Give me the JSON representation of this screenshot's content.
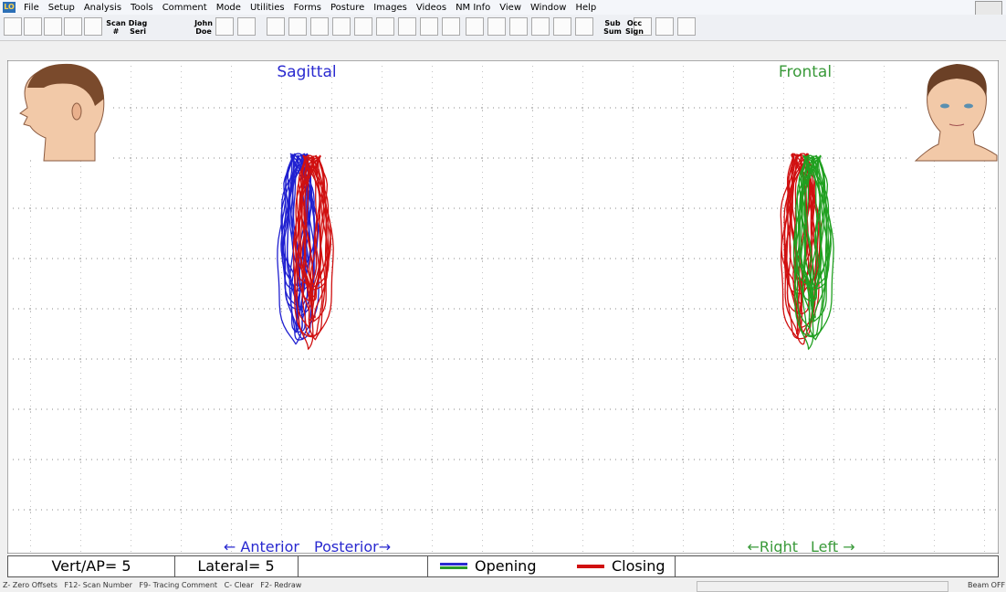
{
  "app_icon": "LO",
  "menu": [
    "File",
    "Setup",
    "Analysis",
    "Tools",
    "Comment",
    "Mode",
    "Utilities",
    "Forms",
    "Posture",
    "Images",
    "Videos",
    "NM Info",
    "View",
    "Window",
    "Help"
  ],
  "toolbar": {
    "text_buttons": [
      [
        "Scan",
        "#"
      ],
      [
        "Diag",
        "Seri"
      ],
      [
        "John",
        "Doe"
      ],
      [
        "Sub",
        "Sum"
      ],
      [
        "Occ",
        "Sign"
      ]
    ]
  },
  "panels": {
    "sagittal": {
      "title": "Sagittal",
      "left_label": "← Anterior",
      "right_label": "Posterior→"
    },
    "frontal": {
      "title": "Frontal",
      "left_label": "←Right",
      "right_label": "Left →"
    }
  },
  "info_bar": {
    "vert_ap": "Vert/AP= 5",
    "lateral": "Lateral= 5",
    "legend": [
      "Opening",
      "Closing"
    ]
  },
  "status_bar": {
    "shortcuts": "Z- Zero Offsets   F12- Scan Number   F9- Tracing Comment   C- Clear   F2- Redraw",
    "beam": "Beam OFF"
  }
}
